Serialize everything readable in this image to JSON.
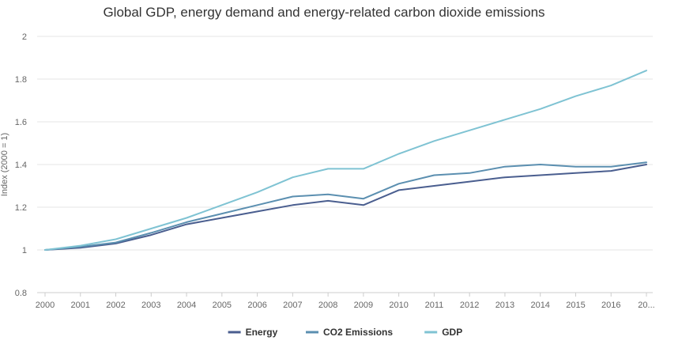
{
  "chart_data": {
    "type": "line",
    "title": "Global GDP, energy demand and energy-related carbon dioxide emissions",
    "xlabel": "",
    "ylabel": "Index (2000 = 1)",
    "ylim": [
      0.8,
      2
    ],
    "yticks": [
      "0.8",
      "1",
      "1.2",
      "1.4",
      "1.6",
      "1.8",
      "2"
    ],
    "categories": [
      "2000",
      "2001",
      "2002",
      "2003",
      "2004",
      "2005",
      "2006",
      "2007",
      "2008",
      "2009",
      "2010",
      "2011",
      "2012",
      "2013",
      "2014",
      "2015",
      "2016",
      "20..."
    ],
    "grid": true,
    "legend_position": "bottom",
    "series": [
      {
        "name": "Energy",
        "color": "#4a5e8f",
        "values": [
          1.0,
          1.01,
          1.03,
          1.07,
          1.12,
          1.15,
          1.18,
          1.21,
          1.23,
          1.21,
          1.28,
          1.3,
          1.32,
          1.34,
          1.35,
          1.36,
          1.37,
          1.4
        ]
      },
      {
        "name": "CO2 Emissions",
        "color": "#5b8fb0",
        "values": [
          1.0,
          1.015,
          1.035,
          1.08,
          1.13,
          1.17,
          1.21,
          1.25,
          1.26,
          1.24,
          1.31,
          1.35,
          1.36,
          1.39,
          1.4,
          1.39,
          1.39,
          1.41
        ]
      },
      {
        "name": "GDP",
        "color": "#7fc3d3",
        "values": [
          1.0,
          1.02,
          1.05,
          1.1,
          1.15,
          1.21,
          1.27,
          1.34,
          1.38,
          1.38,
          1.45,
          1.51,
          1.56,
          1.61,
          1.66,
          1.72,
          1.77,
          1.84
        ]
      }
    ]
  }
}
